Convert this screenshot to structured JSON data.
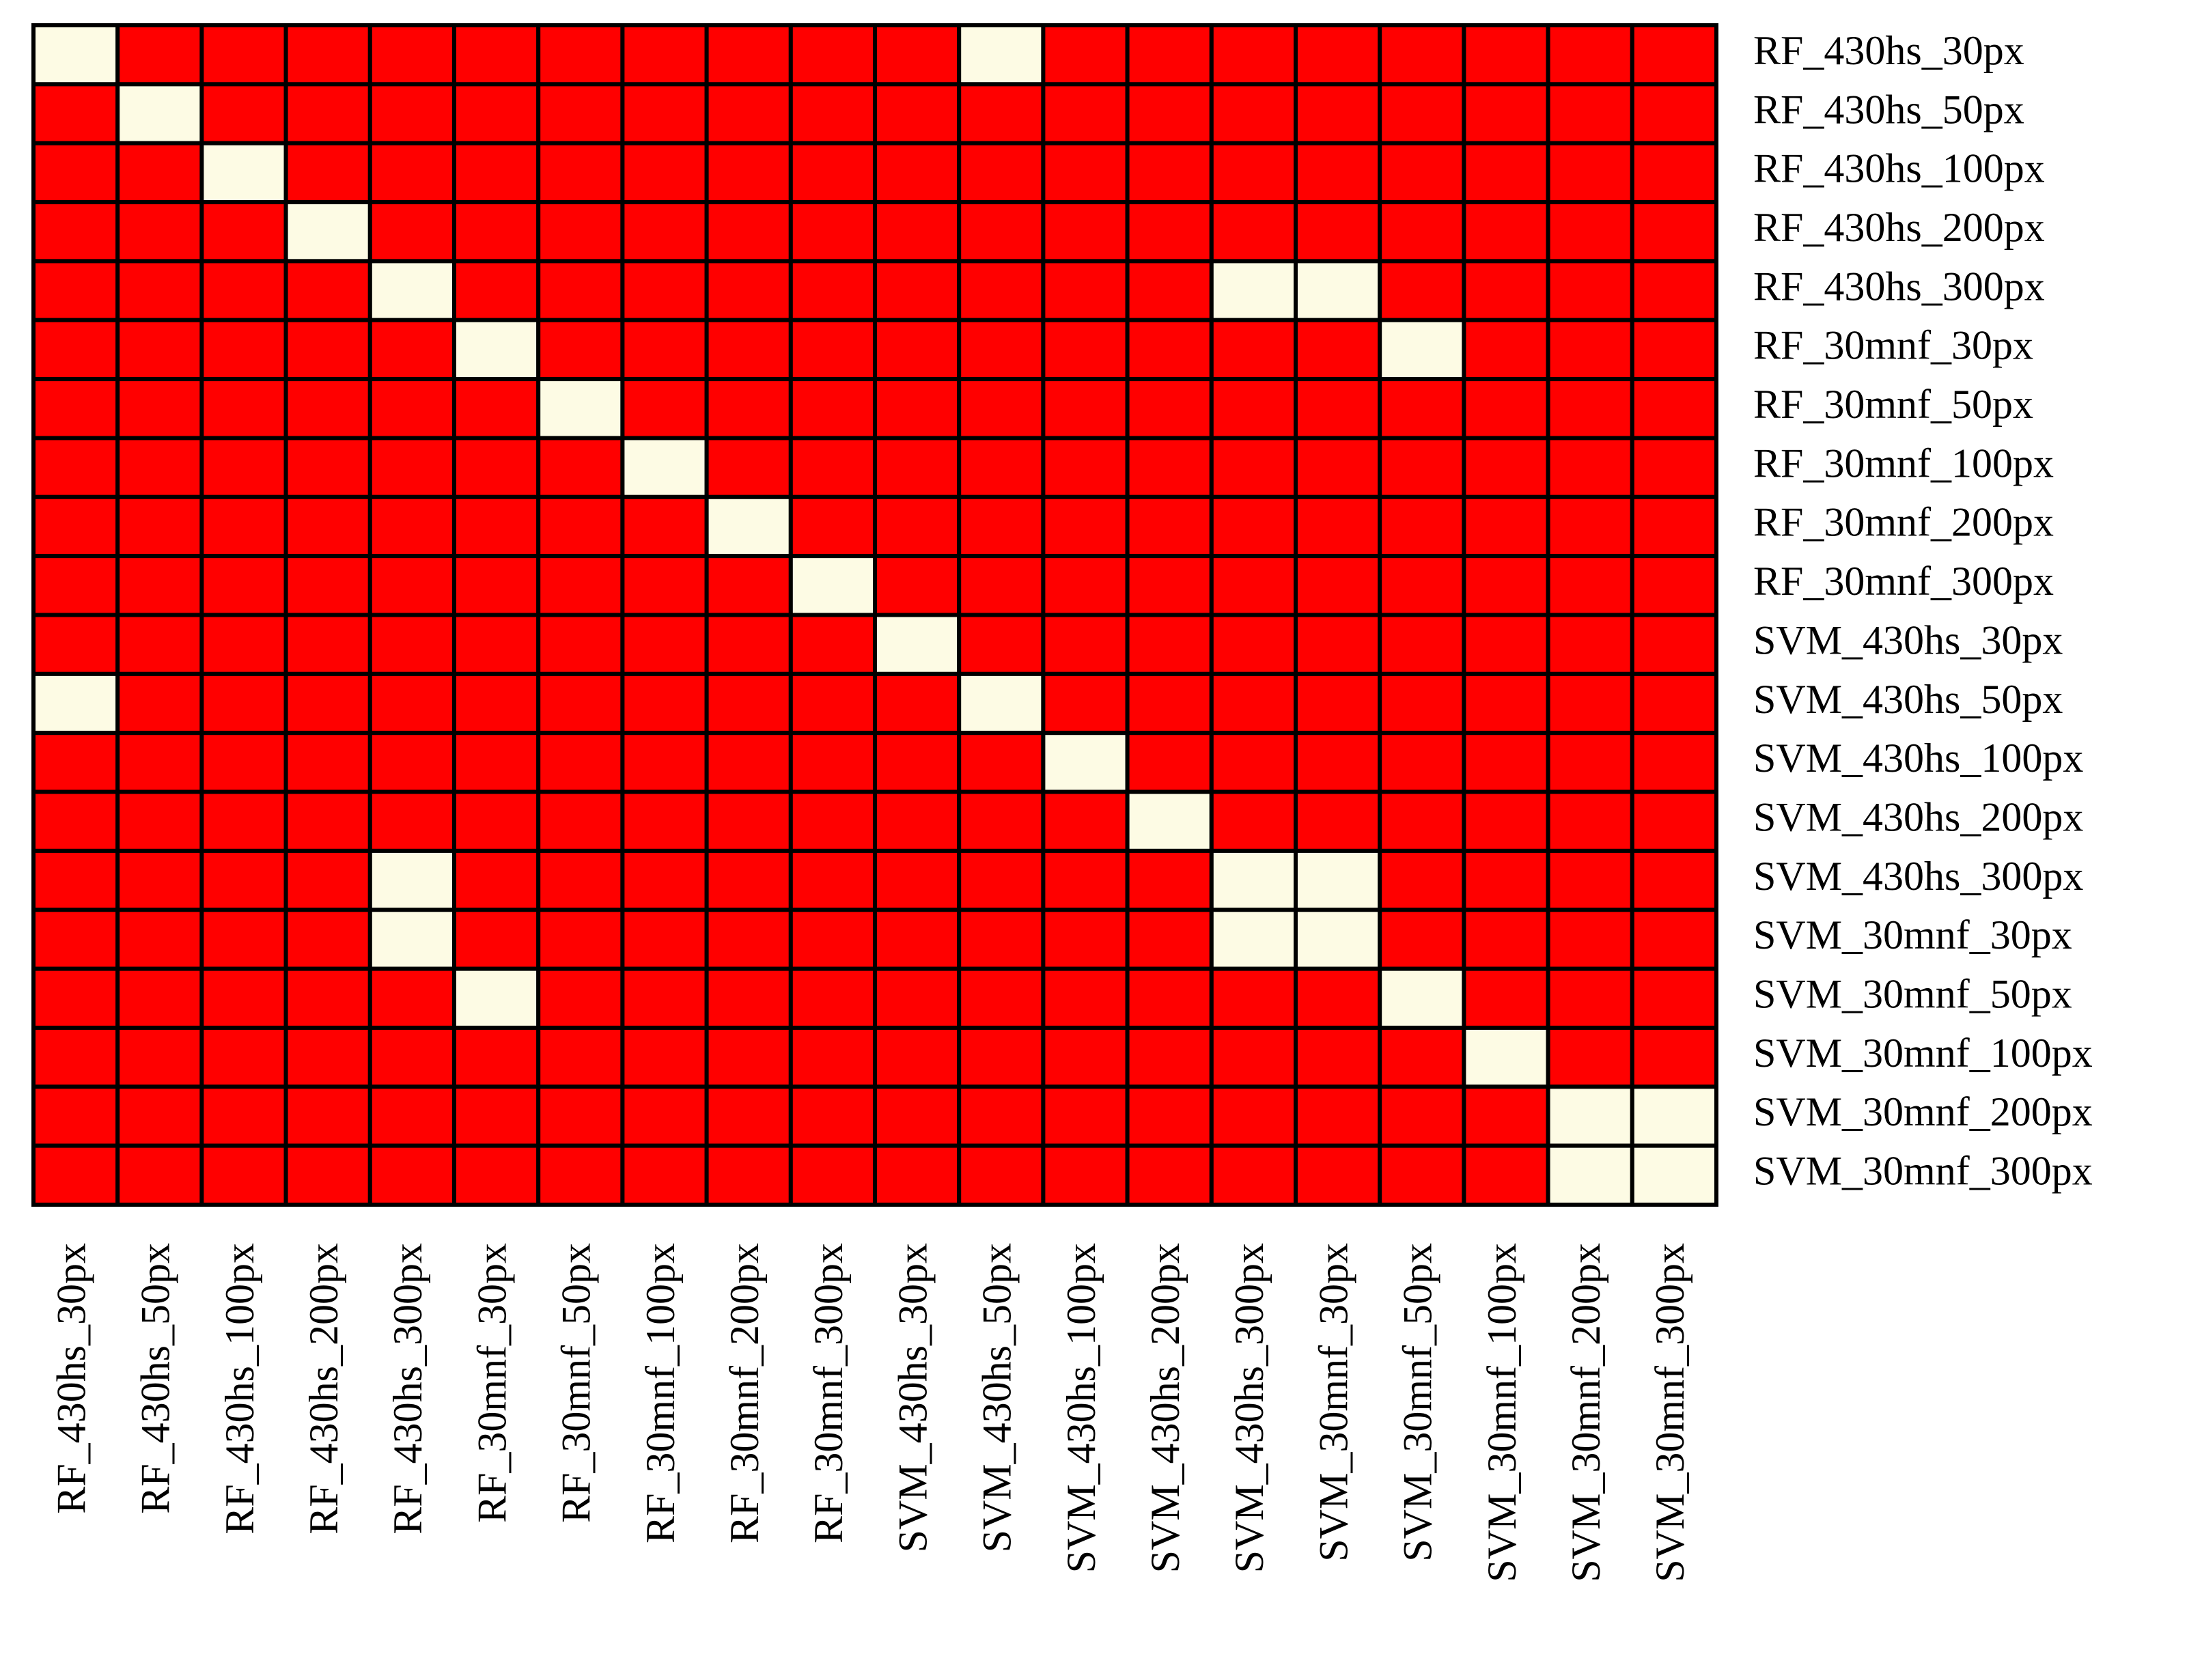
{
  "chart_data": {
    "type": "heatmap",
    "categories": [
      "RF_430hs_30px",
      "RF_430hs_50px",
      "RF_430hs_100px",
      "RF_430hs_200px",
      "RF_430hs_300px",
      "RF_30mnf_30px",
      "RF_30mnf_50px",
      "RF_30mnf_100px",
      "RF_30mnf_200px",
      "RF_30mnf_300px",
      "SVM_430hs_30px",
      "SVM_430hs_50px",
      "SVM_430hs_100px",
      "SVM_430hs_200px",
      "SVM_430hs_300px",
      "SVM_30mnf_30px",
      "SVM_30mnf_50px",
      "SVM_30mnf_100px",
      "SVM_30mnf_200px",
      "SVM_30mnf_300px"
    ],
    "colors": [
      "#ff0000",
      "#fdfbe4"
    ],
    "values": [
      [
        1,
        0,
        0,
        0,
        0,
        0,
        0,
        0,
        0,
        0,
        0,
        1,
        0,
        0,
        0,
        0,
        0,
        0,
        0,
        0
      ],
      [
        0,
        1,
        0,
        0,
        0,
        0,
        0,
        0,
        0,
        0,
        0,
        0,
        0,
        0,
        0,
        0,
        0,
        0,
        0,
        0
      ],
      [
        0,
        0,
        1,
        0,
        0,
        0,
        0,
        0,
        0,
        0,
        0,
        0,
        0,
        0,
        0,
        0,
        0,
        0,
        0,
        0
      ],
      [
        0,
        0,
        0,
        1,
        0,
        0,
        0,
        0,
        0,
        0,
        0,
        0,
        0,
        0,
        0,
        0,
        0,
        0,
        0,
        0
      ],
      [
        0,
        0,
        0,
        0,
        1,
        0,
        0,
        0,
        0,
        0,
        0,
        0,
        0,
        0,
        1,
        1,
        0,
        0,
        0,
        0
      ],
      [
        0,
        0,
        0,
        0,
        0,
        1,
        0,
        0,
        0,
        0,
        0,
        0,
        0,
        0,
        0,
        0,
        1,
        0,
        0,
        0
      ],
      [
        0,
        0,
        0,
        0,
        0,
        0,
        1,
        0,
        0,
        0,
        0,
        0,
        0,
        0,
        0,
        0,
        0,
        0,
        0,
        0
      ],
      [
        0,
        0,
        0,
        0,
        0,
        0,
        0,
        1,
        0,
        0,
        0,
        0,
        0,
        0,
        0,
        0,
        0,
        0,
        0,
        0
      ],
      [
        0,
        0,
        0,
        0,
        0,
        0,
        0,
        0,
        1,
        0,
        0,
        0,
        0,
        0,
        0,
        0,
        0,
        0,
        0,
        0
      ],
      [
        0,
        0,
        0,
        0,
        0,
        0,
        0,
        0,
        0,
        1,
        0,
        0,
        0,
        0,
        0,
        0,
        0,
        0,
        0,
        0
      ],
      [
        0,
        0,
        0,
        0,
        0,
        0,
        0,
        0,
        0,
        0,
        1,
        0,
        0,
        0,
        0,
        0,
        0,
        0,
        0,
        0
      ],
      [
        1,
        0,
        0,
        0,
        0,
        0,
        0,
        0,
        0,
        0,
        0,
        1,
        0,
        0,
        0,
        0,
        0,
        0,
        0,
        0
      ],
      [
        0,
        0,
        0,
        0,
        0,
        0,
        0,
        0,
        0,
        0,
        0,
        0,
        1,
        0,
        0,
        0,
        0,
        0,
        0,
        0
      ],
      [
        0,
        0,
        0,
        0,
        0,
        0,
        0,
        0,
        0,
        0,
        0,
        0,
        0,
        1,
        0,
        0,
        0,
        0,
        0,
        0
      ],
      [
        0,
        0,
        0,
        0,
        1,
        0,
        0,
        0,
        0,
        0,
        0,
        0,
        0,
        0,
        1,
        1,
        0,
        0,
        0,
        0
      ],
      [
        0,
        0,
        0,
        0,
        1,
        0,
        0,
        0,
        0,
        0,
        0,
        0,
        0,
        0,
        1,
        1,
        0,
        0,
        0,
        0
      ],
      [
        0,
        0,
        0,
        0,
        0,
        1,
        0,
        0,
        0,
        0,
        0,
        0,
        0,
        0,
        0,
        0,
        1,
        0,
        0,
        0
      ],
      [
        0,
        0,
        0,
        0,
        0,
        0,
        0,
        0,
        0,
        0,
        0,
        0,
        0,
        0,
        0,
        0,
        0,
        1,
        0,
        0
      ],
      [
        0,
        0,
        0,
        0,
        0,
        0,
        0,
        0,
        0,
        0,
        0,
        0,
        0,
        0,
        0,
        0,
        0,
        0,
        1,
        1
      ],
      [
        0,
        0,
        0,
        0,
        0,
        0,
        0,
        0,
        0,
        0,
        0,
        0,
        0,
        0,
        0,
        0,
        0,
        0,
        1,
        1
      ]
    ]
  }
}
